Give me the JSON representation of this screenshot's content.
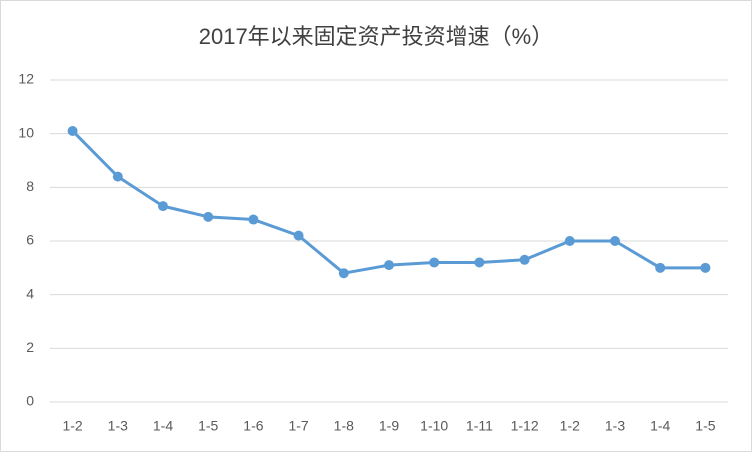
{
  "chart_data": {
    "type": "line",
    "title": "2017年以来固定资产投资增速（%）",
    "categories": [
      "1-2",
      "1-3",
      "1-4",
      "1-5",
      "1-6",
      "1-7",
      "1-8",
      "1-9",
      "1-10",
      "1-11",
      "1-12",
      "1-2",
      "1-3",
      "1-4",
      "1-5"
    ],
    "values": [
      10.1,
      8.4,
      7.3,
      6.9,
      6.8,
      6.2,
      4.8,
      5.1,
      5.2,
      5.2,
      5.3,
      6.0,
      6.0,
      5.0,
      5.0
    ],
    "color": "#5b9bd5",
    "ylim": [
      0,
      12
    ],
    "yticks": [
      0,
      2,
      4,
      6,
      8,
      10,
      12
    ],
    "grid": true
  }
}
